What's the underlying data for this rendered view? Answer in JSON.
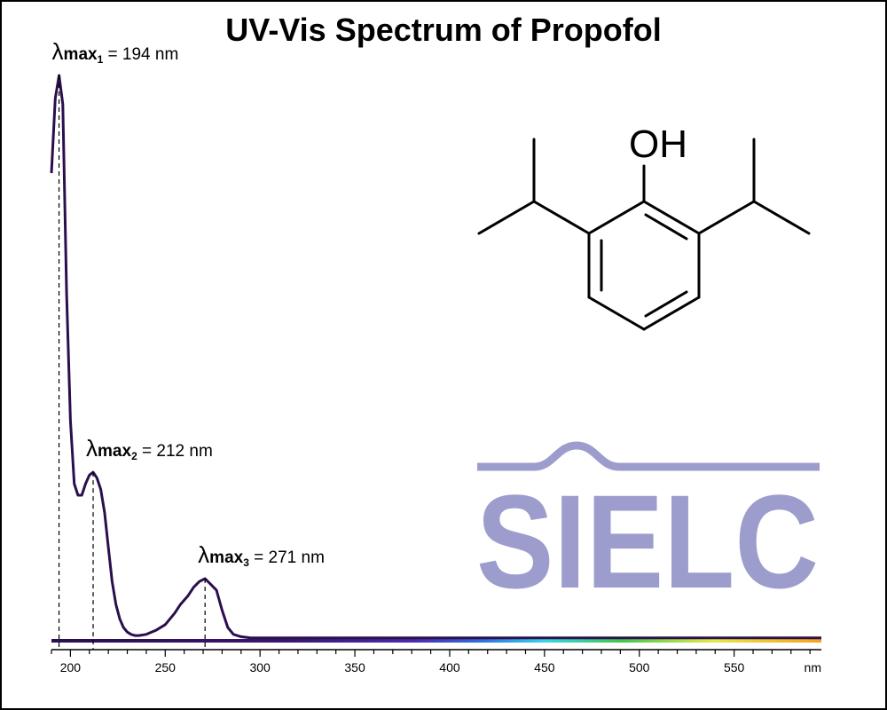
{
  "chart_data": {
    "type": "line",
    "title": "UV-Vis Spectrum of Propofol",
    "xlabel": "",
    "ylabel": "",
    "x_unit_label": "nm",
    "xlim": [
      190,
      596
    ],
    "ylim": [
      0,
      1.0
    ],
    "x_ticks": [
      200,
      250,
      300,
      350,
      400,
      450,
      500,
      550
    ],
    "grid": false,
    "line_color": "#2b0f4c",
    "series": [
      {
        "x": [
          190,
          192,
          194,
          196,
          198,
          200,
          202,
          204,
          206,
          208,
          210,
          212,
          214,
          216,
          218,
          220,
          222,
          224,
          226,
          228,
          230,
          232,
          234,
          236,
          238,
          240,
          245,
          250,
          255,
          258,
          262,
          265,
          268,
          271,
          274,
          277,
          280,
          283,
          286,
          290,
          295,
          300,
          350,
          400,
          450,
          500,
          550,
          596
        ],
        "y": [
          0.81,
          0.94,
          0.98,
          0.93,
          0.6,
          0.38,
          0.27,
          0.25,
          0.25,
          0.27,
          0.285,
          0.29,
          0.28,
          0.26,
          0.22,
          0.16,
          0.1,
          0.06,
          0.035,
          0.02,
          0.012,
          0.008,
          0.006,
          0.006,
          0.007,
          0.008,
          0.015,
          0.025,
          0.045,
          0.06,
          0.075,
          0.09,
          0.1,
          0.105,
          0.095,
          0.085,
          0.05,
          0.02,
          0.008,
          0.004,
          0.002,
          0.002,
          0.002,
          0.002,
          0.002,
          0.002,
          0.002,
          0.002
        ]
      }
    ],
    "peaks": [
      {
        "symbol": "λ",
        "sub": "max",
        "index": "1",
        "text": " = 194 nm",
        "x": 194,
        "y": 0.98
      },
      {
        "symbol": "λ",
        "sub": "max",
        "index": "2",
        "text": " = 212 nm",
        "x": 212,
        "y": 0.29
      },
      {
        "symbol": "λ",
        "sub": "max",
        "index": "3",
        "text": " = 271 nm",
        "x": 271,
        "y": 0.105
      }
    ],
    "spectrum_bar": [
      {
        "offset": 0.0,
        "color": "#2b0f4c"
      },
      {
        "offset": 0.3,
        "color": "#3a1470"
      },
      {
        "offset": 0.47,
        "color": "#4b2ab0"
      },
      {
        "offset": 0.56,
        "color": "#2f6fe0"
      },
      {
        "offset": 0.64,
        "color": "#36d6e8"
      },
      {
        "offset": 0.74,
        "color": "#3fc84a"
      },
      {
        "offset": 0.86,
        "color": "#e6e84a"
      },
      {
        "offset": 1.0,
        "color": "#f7a11e"
      }
    ]
  },
  "molecule": {
    "label": "OH"
  },
  "logo": {
    "text": "SIELC",
    "color": "#9d9dcd"
  }
}
